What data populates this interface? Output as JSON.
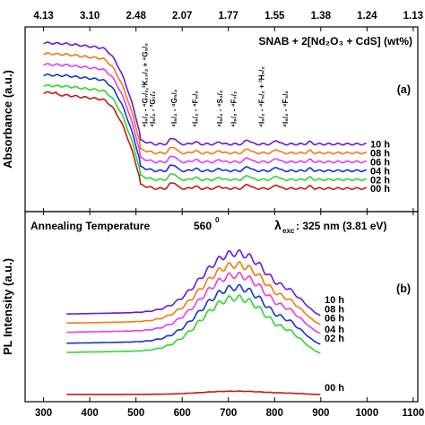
{
  "chart_data": {
    "x_ticks": [
      300,
      400,
      500,
      600,
      700,
      800,
      900,
      1000,
      1100
    ],
    "x_range": [
      260,
      1110
    ],
    "top_axis_ticks": [
      {
        "label": "4.13",
        "at_nm": 300
      },
      {
        "label": "3.10",
        "at_nm": 400
      },
      {
        "label": "2.48",
        "at_nm": 500
      },
      {
        "label": "2.07",
        "at_nm": 600
      },
      {
        "label": "1.77",
        "at_nm": 700
      },
      {
        "label": "1.55",
        "at_nm": 800
      },
      {
        "label": "1.38",
        "at_nm": 900
      },
      {
        "label": "1.24",
        "at_nm": 1000
      },
      {
        "label": "1.13",
        "at_nm": 1100
      }
    ],
    "panels": [
      {
        "id": "a",
        "type": "line",
        "panel_label": "(a)",
        "ylabel": "Absorbance (a.u.)",
        "title": "SNAB + 2[Nd₂O₃ + CdS] (wt%)",
        "y_range": [
          0,
          100
        ],
        "transitions": [
          {
            "at_nm": 519,
            "label": "⁴I₉/₂ - ⁴G₇/₂,²K₁₃/₂ + ⁴G₉/₂"
          },
          {
            "at_nm": 536,
            "label": "⁴I₉/₂ - ²G₇/₂"
          },
          {
            "at_nm": 582,
            "label": "⁴I₉/₂ - ⁴G₅/₂"
          },
          {
            "at_nm": 628,
            "label": "⁴I₉/₂ - ⁴F₉/₂"
          },
          {
            "at_nm": 681,
            "label": "⁴I₉/₂ - ⁴S₃/₂"
          },
          {
            "at_nm": 711,
            "label": "⁴I₉/₂ - ⁴F₇/₂"
          },
          {
            "at_nm": 771,
            "label": "⁴I₉/₂ - ⁴F₅/₂ + ²H₉/₂"
          },
          {
            "at_nm": 823,
            "label": "⁴I₉/₂ - ⁴F₃/₂"
          }
        ],
        "series": [
          {
            "name": "10 h",
            "color": "#6a1ad6",
            "plateau": 92,
            "baseline": 36
          },
          {
            "name": "08 h",
            "color": "#f07a10",
            "plateau": 86,
            "baseline": 31
          },
          {
            "name": "06 h",
            "color": "#e83ce8",
            "plateau": 80,
            "baseline": 26
          },
          {
            "name": "04 h",
            "color": "#1535cf",
            "plateau": 74,
            "baseline": 21
          },
          {
            "name": "02 h",
            "color": "#2fd62f",
            "plateau": 68,
            "baseline": 16
          },
          {
            "name": "00 h",
            "color": "#c01a1a",
            "plateau": 63,
            "baseline": 11
          }
        ]
      },
      {
        "id": "b",
        "type": "line",
        "panel_label": "(b)",
        "ylabel": "PL Intensity (a.u.)",
        "annotation_left": "Annealing Temperature",
        "annotation_temp": "560",
        "annotation_deg": "0",
        "annotation_right_prefix": "λ",
        "annotation_right_sub": "exc",
        "annotation_right_text": ": 325 nm (3.81 eV)",
        "y_range": [
          0,
          100
        ],
        "series": [
          {
            "name": "10 h",
            "color": "#6a1ad6",
            "base": 46,
            "peak": 93
          },
          {
            "name": "08 h",
            "color": "#f07a10",
            "base": 41,
            "peak": 86
          },
          {
            "name": "06 h",
            "color": "#e83ce8",
            "base": 36,
            "peak": 80
          },
          {
            "name": "04 h",
            "color": "#1535cf",
            "base": 30,
            "peak": 73
          },
          {
            "name": "02 h",
            "color": "#2fd62f",
            "base": 25,
            "peak": 67
          },
          {
            "name": "00 h",
            "color": "#c01a1a",
            "base": 2,
            "peak": 4.5
          }
        ]
      }
    ]
  }
}
